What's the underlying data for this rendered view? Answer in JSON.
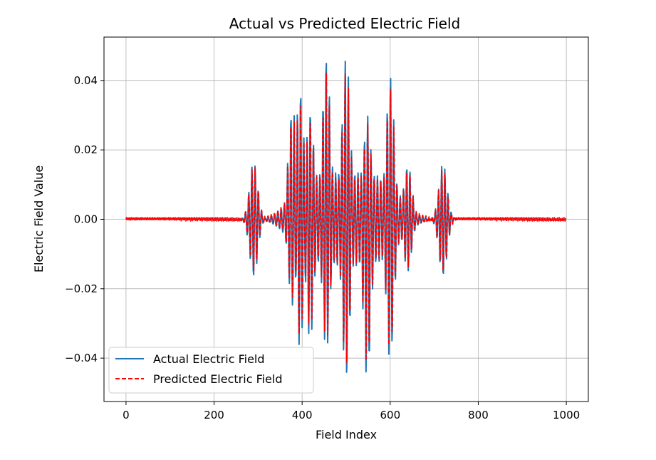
{
  "chart_data": {
    "type": "line",
    "title": "Actual vs Predicted Electric Field",
    "xlabel": "Field Index",
    "ylabel": "Electric Field Value",
    "xlim": [
      -50,
      1050
    ],
    "ylim": [
      -0.0525,
      0.0525
    ],
    "x_ticks": [
      0,
      200,
      400,
      600,
      800,
      1000
    ],
    "x_tick_labels": [
      "0",
      "200",
      "400",
      "600",
      "800",
      "1000"
    ],
    "y_ticks": [
      -0.04,
      -0.02,
      0.0,
      0.02,
      0.04
    ],
    "y_tick_labels": [
      "−0.04",
      "−0.02",
      "0.00",
      "0.02",
      "0.04"
    ],
    "grid": true,
    "legend_position": "lower-left",
    "x_range": [
      0,
      999
    ],
    "samples": 1000,
    "series": [
      {
        "name": "Actual Electric Field",
        "color": "#1f77b4",
        "style": "solid"
      },
      {
        "name": "Predicted Electric Field",
        "color": "#ff0000",
        "style": "dashed"
      }
    ],
    "peaks": [
      {
        "x": 290,
        "pos": 0.0165,
        "neg": -0.017
      },
      {
        "x": 378,
        "pos": 0.033,
        "neg": -0.025
      },
      {
        "x": 395,
        "pos": 0.038,
        "neg": -0.037
      },
      {
        "x": 418,
        "pos": 0.032,
        "neg": -0.035
      },
      {
        "x": 455,
        "pos": 0.048,
        "neg": -0.038
      },
      {
        "x": 500,
        "pos": 0.0475,
        "neg": -0.047
      },
      {
        "x": 548,
        "pos": 0.03,
        "neg": -0.047
      },
      {
        "x": 600,
        "pos": 0.042,
        "neg": -0.041
      },
      {
        "x": 640,
        "pos": 0.016,
        "neg": -0.015
      },
      {
        "x": 720,
        "pos": 0.016,
        "neg": -0.017
      }
    ]
  },
  "legend": {
    "actual_label": "Actual Electric Field",
    "predicted_label": "Predicted Electric Field"
  }
}
